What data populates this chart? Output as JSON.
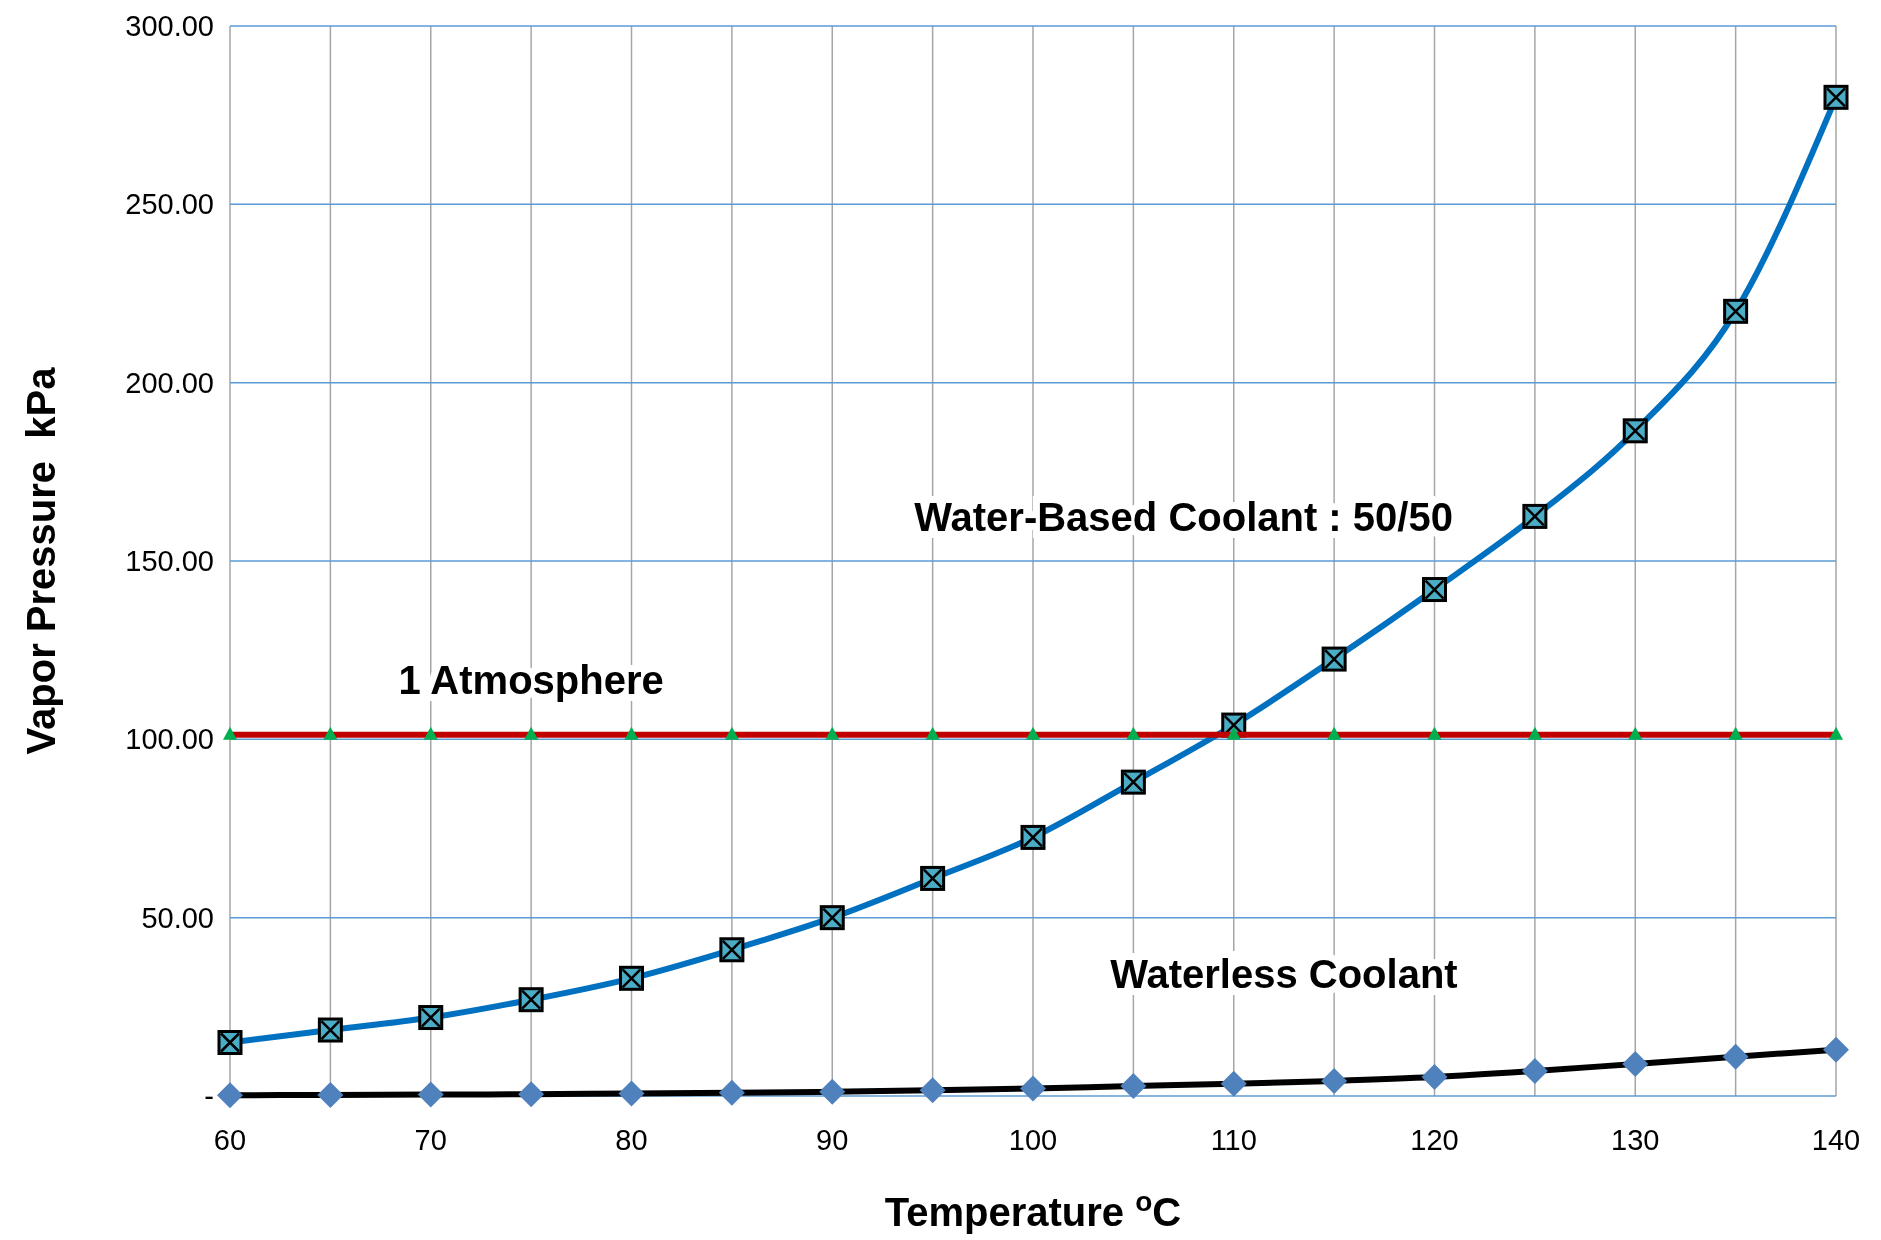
{
  "chart_data": {
    "type": "line",
    "xlabel": "Temperature $^{o}$C",
    "ylabel": "Vapor Pressure  kPa",
    "x": [
      60,
      65,
      70,
      75,
      80,
      85,
      90,
      95,
      100,
      105,
      110,
      115,
      120,
      125,
      130,
      135,
      140
    ],
    "xlim": [
      60,
      140
    ],
    "ylim": [
      0,
      300
    ],
    "xticks": [
      60,
      {
        "value": 65,
        "label": null
      },
      70,
      {
        "value": 75,
        "label": null
      },
      80,
      {
        "value": 85,
        "label": null
      },
      90,
      {
        "value": 95,
        "label": null
      },
      100,
      {
        "value": 105,
        "label": null
      },
      110,
      {
        "value": 115,
        "label": null
      },
      120,
      {
        "value": 125,
        "label": null
      },
      130,
      {
        "value": 135,
        "label": null
      },
      140
    ],
    "yticks": [
      {
        "value": 0,
        "label": "-"
      },
      {
        "value": 50,
        "label": "50.00"
      },
      {
        "value": 100,
        "label": "100.00"
      },
      {
        "value": 150,
        "label": "150.00"
      },
      {
        "value": 200,
        "label": "200.00"
      },
      {
        "value": 250,
        "label": "250.00"
      },
      {
        "value": 300,
        "label": "300.00"
      }
    ],
    "grid": true,
    "line_style": "solid",
    "series": [
      {
        "name": "1 Atmosphere",
        "color": "#c00000",
        "marker": "triangle",
        "values": [
          101.3,
          101.3,
          101.3,
          101.3,
          101.3,
          101.3,
          101.3,
          101.3,
          101.3,
          101.3,
          101.3,
          101.3,
          101.3,
          101.3,
          101.3,
          101.3,
          101.3
        ]
      },
      {
        "name": "Water-Based Coolant : 50/50",
        "color": "#0070c0",
        "marker": "square",
        "values": [
          15,
          18.5,
          22,
          27,
          33,
          41,
          50,
          61,
          72.5,
          88,
          104,
          122.5,
          142,
          162.5,
          186.5,
          220,
          280
        ]
      },
      {
        "name": "Waterless Coolant",
        "color": "#000000",
        "marker": "diamond",
        "values": [
          0.2,
          0.3,
          0.4,
          0.5,
          0.7,
          0.9,
          1.2,
          1.6,
          2.1,
          2.8,
          3.4,
          4.2,
          5.3,
          7,
          9,
          11,
          13
        ]
      }
    ]
  }
}
